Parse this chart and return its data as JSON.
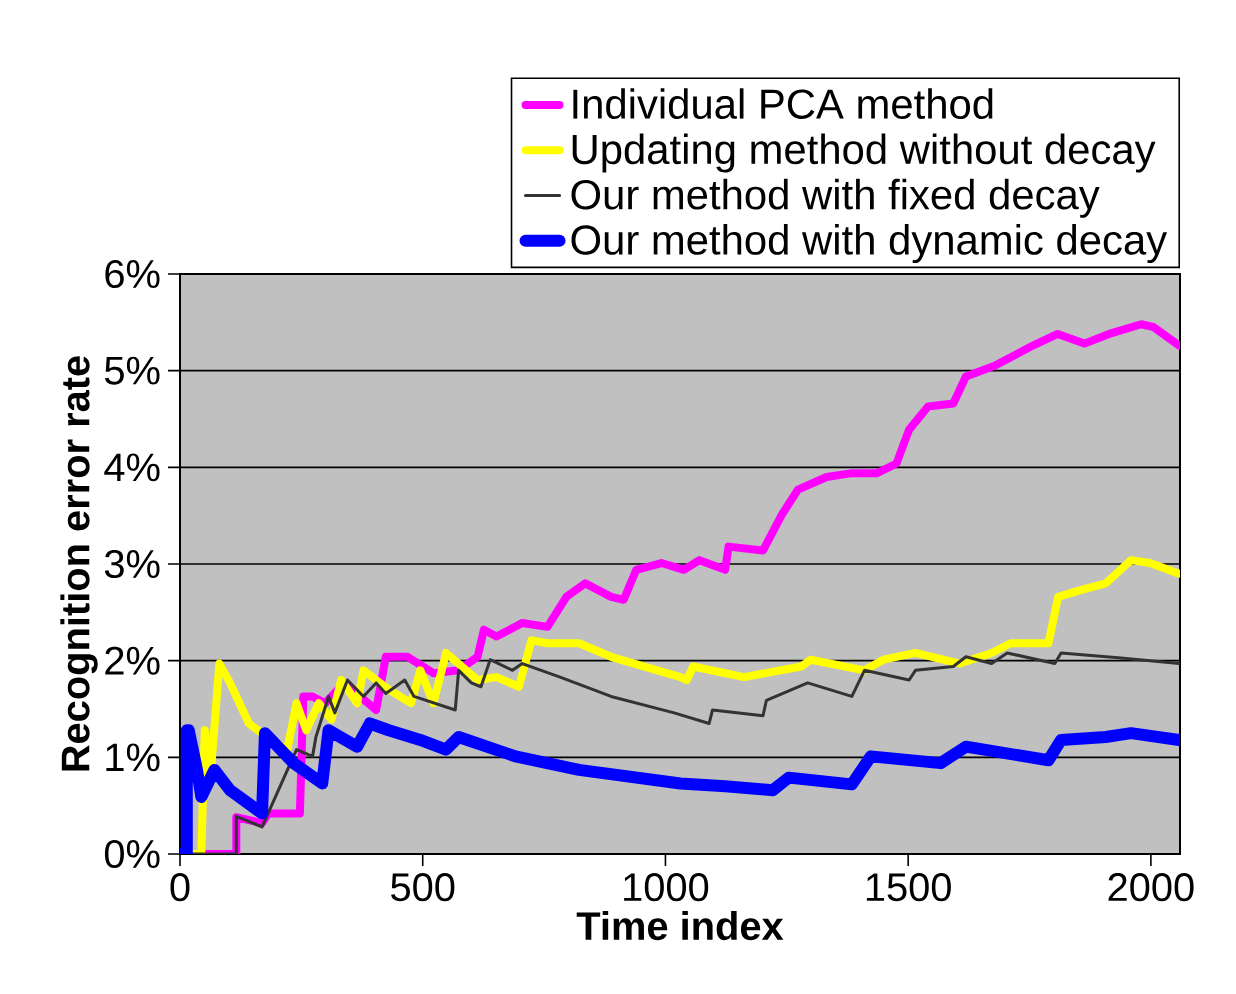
{
  "chart_data": {
    "type": "line",
    "xlabel": "Time index",
    "ylabel": "Recognition error rate",
    "xlim": [
      0,
      2060
    ],
    "ylim": [
      0,
      6
    ],
    "xticks": [
      0,
      500,
      1000,
      1500,
      2000
    ],
    "yticks": [
      {
        "value": 0,
        "label": "0%"
      },
      {
        "value": 1,
        "label": "1%"
      },
      {
        "value": 2,
        "label": "2%"
      },
      {
        "value": 3,
        "label": "3%"
      },
      {
        "value": 4,
        "label": "4%"
      },
      {
        "value": 5,
        "label": "5%"
      },
      {
        "value": 6,
        "label": "6%"
      }
    ],
    "grid": "y",
    "legend": "top",
    "marker": "none",
    "line_style": "solid",
    "series": [
      {
        "name": "Individual PCA method",
        "color": "#ff00ff",
        "x": [
          0,
          116,
          116,
          169,
          182,
          247,
          254,
          273,
          299,
          338,
          404,
          424,
          469,
          522,
          574,
          613,
          626,
          652,
          705,
          757,
          796,
          835,
          888,
          914,
          940,
          992,
          1038,
          1070,
          1123,
          1130,
          1201,
          1241,
          1273,
          1332,
          1384,
          1436,
          1476,
          1502,
          1541,
          1593,
          1619,
          1678,
          1757,
          1808,
          1863,
          1914,
          1980,
          2006,
          2058
        ],
        "values": [
          0,
          0,
          0.38,
          0.32,
          0.42,
          0.42,
          1.63,
          1.63,
          1.56,
          1.77,
          1.49,
          2.04,
          2.04,
          1.87,
          1.9,
          2.04,
          2.32,
          2.25,
          2.39,
          2.35,
          2.66,
          2.8,
          2.66,
          2.63,
          2.94,
          3.01,
          2.94,
          3.04,
          2.94,
          3.18,
          3.14,
          3.52,
          3.77,
          3.9,
          3.94,
          3.94,
          4.04,
          4.39,
          4.63,
          4.66,
          4.94,
          5.05,
          5.26,
          5.38,
          5.28,
          5.38,
          5.48,
          5.45,
          5.26
        ]
      },
      {
        "name": "Updating method without decay",
        "color": "#ffff00",
        "x": [
          0,
          44,
          51,
          64,
          81,
          103,
          142,
          169,
          221,
          240,
          260,
          286,
          312,
          332,
          365,
          378,
          430,
          476,
          495,
          522,
          548,
          613,
          652,
          698,
          724,
          757,
          822,
          888,
          1031,
          1044,
          1057,
          1162,
          1280,
          1299,
          1410,
          1449,
          1515,
          1606,
          1672,
          1711,
          1789,
          1809,
          1855,
          1907,
          1959,
          1998,
          2058
        ],
        "values": [
          0,
          0,
          1.28,
          0.87,
          1.97,
          1.77,
          1.35,
          1.25,
          1.08,
          1.56,
          1.28,
          1.56,
          1.39,
          1.8,
          1.56,
          1.9,
          1.7,
          1.56,
          1.9,
          1.56,
          2.08,
          1.8,
          1.83,
          1.73,
          2.21,
          2.18,
          2.18,
          2.04,
          1.83,
          1.8,
          1.94,
          1.83,
          1.94,
          2.01,
          1.9,
          2.01,
          2.08,
          1.97,
          2.08,
          2.18,
          2.18,
          2.66,
          2.73,
          2.8,
          3.04,
          3.01,
          2.9
        ]
      },
      {
        "name": "Our method with fixed decay",
        "color": "#333333",
        "x": [
          0,
          116,
          116,
          169,
          240,
          273,
          280,
          306,
          319,
          345,
          378,
          404,
          424,
          463,
          482,
          567,
          574,
          600,
          620,
          639,
          685,
          705,
          783,
          888,
          1018,
          1090,
          1097,
          1201,
          1208,
          1293,
          1384,
          1410,
          1502,
          1515,
          1593,
          1619,
          1672,
          1704,
          1802,
          1815,
          1933,
          2058
        ],
        "values": [
          0,
          0,
          0.39,
          0.28,
          1.08,
          1.01,
          1.21,
          1.63,
          1.46,
          1.8,
          1.63,
          1.77,
          1.66,
          1.8,
          1.63,
          1.49,
          1.9,
          1.77,
          1.73,
          2.01,
          1.9,
          1.97,
          1.83,
          1.63,
          1.46,
          1.35,
          1.49,
          1.43,
          1.59,
          1.77,
          1.63,
          1.9,
          1.8,
          1.9,
          1.94,
          2.04,
          1.97,
          2.08,
          1.97,
          2.08,
          2.03,
          1.97
        ]
      },
      {
        "name": "Our method with dynamic decay",
        "color": "#0000ff",
        "x": [
          0,
          14,
          14,
          18,
          35,
          44,
          71,
          103,
          169,
          175,
          234,
          293,
          306,
          365,
          391,
          430,
          495,
          548,
          574,
          691,
          822,
          1031,
          1123,
          1221,
          1254,
          1384,
          1423,
          1567,
          1619,
          1789,
          1815,
          1907,
          1959,
          2058
        ],
        "values": [
          0,
          0,
          1.28,
          1.28,
          0.87,
          0.59,
          0.87,
          0.66,
          0.42,
          1.25,
          0.94,
          0.73,
          1.28,
          1.11,
          1.35,
          1.28,
          1.18,
          1.08,
          1.21,
          1.01,
          0.87,
          0.73,
          0.7,
          0.66,
          0.79,
          0.72,
          1.01,
          0.94,
          1.11,
          0.97,
          1.18,
          1.21,
          1.25,
          1.18
        ]
      }
    ]
  }
}
